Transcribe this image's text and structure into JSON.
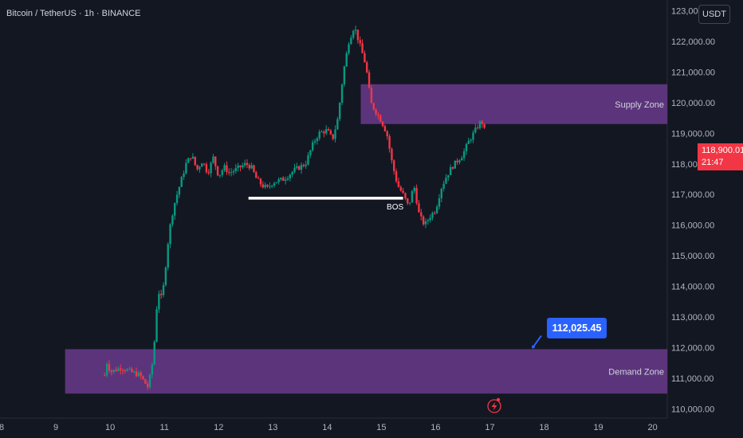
{
  "header": {
    "title": "Bitcoin / TetherUS · 1h · BINANCE"
  },
  "toolbar": {
    "currency": "USDT"
  },
  "last_price": {
    "price": "118,900.01",
    "countdown": "21:47",
    "color": "#f23645"
  },
  "colors": {
    "up": "#089981",
    "down": "#f23645",
    "zone": "#6a3a8c",
    "background": "#131722",
    "accent": "#2962ff"
  },
  "icons": {
    "event_marker": "lightning-icon"
  },
  "chart_data": {
    "type": "candlestick",
    "x_axis": {
      "ticks": [
        "8",
        "9",
        "10",
        "11",
        "12",
        "13",
        "14",
        "15",
        "16",
        "17",
        "18",
        "19",
        "20"
      ],
      "range": [
        7.97,
        20.27
      ]
    },
    "y_axis": {
      "ticks": [
        "110,000.00",
        "111,000.00",
        "112,000.00",
        "113,000.00",
        "114,000.00",
        "115,000.00",
        "116,000.00",
        "117,000.00",
        "118,000.00",
        "119,000.00",
        "120,000.00",
        "121,000.00",
        "122,000.00",
        "123,000.00"
      ],
      "range": [
        109700,
        123350
      ]
    },
    "zones": [
      {
        "label": "Supply Zone",
        "x_start": 14.62,
        "x_end": 20.27,
        "y_low": 119300,
        "y_high": 120600
      },
      {
        "label": "Demand Zone",
        "x_start": 9.17,
        "x_end": 20.27,
        "y_low": 110500,
        "y_high": 111950
      }
    ],
    "annotations": [
      {
        "label": "BOS",
        "x_start": 12.55,
        "x_end": 15.4,
        "y": 116880
      },
      {
        "label": "112,025.45",
        "x": 17.8,
        "y": 112025.45
      }
    ],
    "price_path": [
      [
        9.9,
        111100
      ],
      [
        9.95,
        111600
      ],
      [
        10.0,
        111200
      ],
      [
        10.2,
        111350
      ],
      [
        10.4,
        111200
      ],
      [
        10.55,
        111100
      ],
      [
        10.7,
        110700
      ],
      [
        10.8,
        111700
      ],
      [
        10.85,
        113200
      ],
      [
        10.9,
        113800
      ],
      [
        10.95,
        113600
      ],
      [
        11.0,
        114200
      ],
      [
        11.05,
        115200
      ],
      [
        11.1,
        115900
      ],
      [
        11.15,
        116400
      ],
      [
        11.2,
        116800
      ],
      [
        11.3,
        117400
      ],
      [
        11.4,
        118000
      ],
      [
        11.5,
        118300
      ],
      [
        11.6,
        117800
      ],
      [
        11.7,
        118100
      ],
      [
        11.8,
        117700
      ],
      [
        11.9,
        118200
      ],
      [
        12.0,
        117600
      ],
      [
        12.1,
        117900
      ],
      [
        12.2,
        117700
      ],
      [
        12.3,
        117800
      ],
      [
        12.5,
        118000
      ],
      [
        12.6,
        117900
      ],
      [
        12.7,
        117500
      ],
      [
        12.8,
        117300
      ],
      [
        12.9,
        117200
      ],
      [
        13.0,
        117400
      ],
      [
        13.2,
        117500
      ],
      [
        13.4,
        117800
      ],
      [
        13.6,
        118000
      ],
      [
        13.75,
        118700
      ],
      [
        13.85,
        119000
      ],
      [
        14.0,
        119100
      ],
      [
        14.1,
        118800
      ],
      [
        14.2,
        119500
      ],
      [
        14.3,
        121000
      ],
      [
        14.4,
        122000
      ],
      [
        14.5,
        122500
      ],
      [
        14.55,
        122200
      ],
      [
        14.6,
        121900
      ],
      [
        14.7,
        121300
      ],
      [
        14.75,
        120800
      ],
      [
        14.8,
        120000
      ],
      [
        14.9,
        119700
      ],
      [
        15.0,
        119400
      ],
      [
        15.1,
        119000
      ],
      [
        15.2,
        118000
      ],
      [
        15.3,
        117300
      ],
      [
        15.4,
        117000
      ],
      [
        15.5,
        116600
      ],
      [
        15.6,
        117300
      ],
      [
        15.7,
        116300
      ],
      [
        15.8,
        116000
      ],
      [
        15.9,
        116300
      ],
      [
        16.0,
        116500
      ],
      [
        16.1,
        117200
      ],
      [
        16.2,
        117600
      ],
      [
        16.3,
        117900
      ],
      [
        16.4,
        118100
      ],
      [
        16.5,
        118300
      ],
      [
        16.6,
        118700
      ],
      [
        16.7,
        119000
      ],
      [
        16.8,
        119300
      ],
      [
        16.85,
        119400
      ],
      [
        16.9,
        119100
      ],
      [
        16.92,
        118900
      ]
    ]
  }
}
